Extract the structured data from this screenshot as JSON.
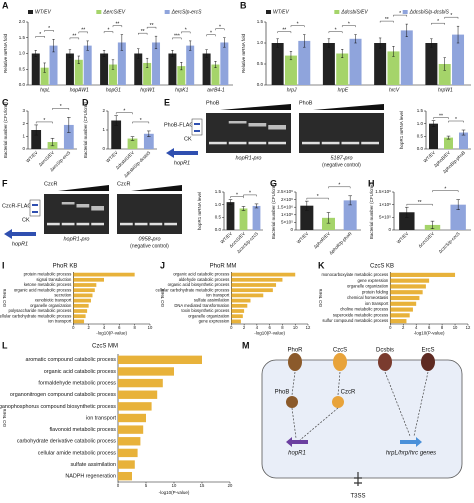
{
  "chart_data": [
    {
      "type": "bar",
      "panel": "A",
      "ylabel": "Relative mRNA fold",
      "categories": [
        "hrpL",
        "hopAW1",
        "hopG1",
        "hrpW1",
        "hrpK1",
        "avrB4-1"
      ],
      "series": [
        {
          "name": "WT/EV",
          "color": "#222222",
          "values": [
            1,
            1,
            1,
            1,
            1,
            1
          ],
          "errors": [
            0.1,
            0.12,
            0.1,
            0.15,
            0.1,
            0.12
          ]
        },
        {
          "name": "ΔercS/EV",
          "color": "#a5d46a",
          "values": [
            0.55,
            0.8,
            0.65,
            0.7,
            0.6,
            0.65
          ],
          "errors": [
            0.15,
            0.12,
            0.15,
            0.15,
            0.12,
            0.1
          ]
        },
        {
          "name": "ΔercS/p-ercS",
          "color": "#8fa4dc",
          "values": [
            1.25,
            1.25,
            1.35,
            1.35,
            1.25,
            1.35
          ],
          "errors": [
            0.2,
            0.15,
            0.25,
            0.2,
            0.15,
            0.15
          ]
        }
      ],
      "ylim": [
        0,
        2
      ],
      "yticks": [
        {
          "value": 0,
          "label": "0.0"
        },
        {
          "value": 0.5,
          "label": "0.5"
        },
        {
          "value": 1,
          "label": "1.0"
        },
        {
          "value": 1.5,
          "label": "1.5"
        },
        {
          "value": 2,
          "label": "2.0"
        }
      ],
      "significance": [
        {
          "label": "*",
          "category": 0,
          "pair": [
            0,
            1
          ]
        },
        {
          "label": "*",
          "category": 0,
          "pair": [
            1,
            2
          ]
        },
        {
          "label": "**",
          "category": 1,
          "pair": [
            0,
            1
          ]
        },
        {
          "label": "**",
          "category": 1,
          "pair": [
            1,
            2
          ]
        },
        {
          "label": "*",
          "category": 2,
          "pair": [
            0,
            1
          ]
        },
        {
          "label": "**",
          "category": 2,
          "pair": [
            1,
            2
          ]
        },
        {
          "label": "**",
          "category": 3,
          "pair": [
            0,
            1
          ]
        },
        {
          "label": "**",
          "category": 3,
          "pair": [
            1,
            2
          ]
        },
        {
          "label": "***",
          "category": 4,
          "pair": [
            0,
            1
          ]
        },
        {
          "label": "*",
          "category": 4,
          "pair": [
            1,
            2
          ]
        },
        {
          "label": "*",
          "category": 5,
          "pair": [
            0,
            1
          ]
        },
        {
          "label": "*",
          "category": 5,
          "pair": [
            1,
            2
          ]
        }
      ]
    },
    {
      "type": "bar",
      "panel": "B",
      "ylabel": "Relative mRNA fold",
      "categories": [
        "hrpJ",
        "hrpE",
        "hrcV",
        "hrpW1"
      ],
      "series": [
        {
          "name": "WT/EV",
          "color": "#222222",
          "values": [
            1,
            1,
            1,
            1
          ],
          "errors": [
            0.1,
            0.1,
            0.12,
            0.1
          ]
        },
        {
          "name": "ΔdcsbiS/EV",
          "color": "#a5d46a",
          "values": [
            0.7,
            0.75,
            0.8,
            0.5
          ],
          "errors": [
            0.1,
            0.1,
            0.12,
            0.15
          ]
        },
        {
          "name": "ΔdcsbiS/p-dcsbiS",
          "color": "#8fa4dc",
          "values": [
            1.05,
            1.1,
            1.3,
            1.2
          ],
          "errors": [
            0.15,
            0.1,
            0.15,
            0.2
          ]
        }
      ],
      "ylim": [
        0,
        1.5
      ],
      "yticks": [
        {
          "value": 0,
          "label": "0.0"
        },
        {
          "value": 0.5,
          "label": "0.5"
        },
        {
          "value": 1,
          "label": "1.0"
        },
        {
          "value": 1.5,
          "label": "1.5"
        }
      ],
      "significance": [
        {
          "label": "**",
          "category": 0,
          "pair": [
            0,
            1
          ]
        },
        {
          "label": "*",
          "category": 0,
          "pair": [
            1,
            2
          ]
        },
        {
          "label": "*",
          "category": 1,
          "pair": [
            0,
            1
          ]
        },
        {
          "label": "*",
          "category": 1,
          "pair": [
            1,
            2
          ]
        },
        {
          "label": "**",
          "category": 2,
          "pair": [
            0,
            1
          ]
        },
        {
          "label": "*",
          "category": 2,
          "pair": [
            1,
            2
          ]
        },
        {
          "label": "*",
          "category": 3,
          "pair": [
            0,
            1
          ]
        },
        {
          "label": "*",
          "category": 3,
          "pair": [
            1,
            2
          ]
        }
      ]
    },
    {
      "type": "bar",
      "panel": "C",
      "ylabel": "Bacterial number (CFU/cm²)",
      "categories": [
        "WT/EV",
        "ΔercS/EV",
        "ΔercS/p-ercS"
      ],
      "values": [
        1.5,
        0.55,
        1.9
      ],
      "errors": [
        0.4,
        0.3,
        0.6
      ],
      "colors": [
        "#222222",
        "#a5d46a",
        "#8fa4dc"
      ],
      "ylim": [
        0,
        3
      ],
      "yticks": [
        0,
        1,
        2,
        3
      ],
      "significance": [
        {
          "label": "*",
          "pair": [
            0,
            1
          ]
        },
        {
          "label": "*",
          "pair": [
            1,
            2
          ]
        }
      ]
    },
    {
      "type": "bar",
      "panel": "D",
      "ylabel": "Bacterial number (CFU/cm²)",
      "categories": [
        "WT/EV",
        "ΔdcsbiS/EV",
        "ΔdcsbiS/p-dcsbiS"
      ],
      "values": [
        1.5,
        0.55,
        0.8
      ],
      "errors": [
        0.25,
        0.1,
        0.15
      ],
      "colors": [
        "#222222",
        "#a5d46a",
        "#8fa4dc"
      ],
      "ylim": [
        0,
        2
      ],
      "yticks": [
        0,
        1,
        2
      ],
      "significance": [
        {
          "label": "*",
          "pair": [
            0,
            1
          ]
        },
        {
          "label": "*",
          "pair": [
            1,
            2
          ]
        }
      ]
    },
    {
      "type": "bar",
      "ylabel": "hopR1 mRNA level",
      "categories": [
        "WT/EV",
        "ΔphoB/EV",
        "ΔphoB/p-phoB"
      ],
      "values": [
        1,
        0.45,
        0.65
      ],
      "errors": [
        0.12,
        0.06,
        0.1
      ],
      "colors": [
        "#222222",
        "#a5d46a",
        "#8fa4dc"
      ],
      "ylim": [
        0,
        1.5
      ],
      "yticks": [
        {
          "value": 0,
          "label": "0.0"
        },
        {
          "value": 0.5,
          "label": "0.5"
        },
        {
          "value": 1,
          "label": "1.0"
        },
        {
          "value": 1.5,
          "label": "1.5"
        }
      ],
      "significance": [
        {
          "label": "**",
          "pair": [
            0,
            1
          ]
        },
        {
          "label": "*",
          "pair": [
            1,
            2
          ]
        }
      ]
    },
    {
      "type": "bar",
      "ylabel": "hopR1 mRNA level",
      "categories": [
        "WT/EV",
        "ΔczcS/EV",
        "ΔczcS/p-czcS"
      ],
      "values": [
        1.1,
        0.85,
        0.95
      ],
      "errors": [
        0.1,
        0.08,
        0.08
      ],
      "colors": [
        "#222222",
        "#a5d46a",
        "#8fa4dc"
      ],
      "ylim": [
        0,
        1.5
      ],
      "yticks": [
        {
          "value": 0,
          "label": "0.0"
        },
        {
          "value": 0.5,
          "label": "0.5"
        },
        {
          "value": 1,
          "label": "1.0"
        },
        {
          "value": 1.5,
          "label": "1.5"
        }
      ],
      "significance": [
        {
          "label": "*",
          "pair": [
            0,
            1
          ]
        },
        {
          "label": "*",
          "pair": [
            1,
            2
          ]
        }
      ]
    },
    {
      "type": "bar",
      "panel": "G",
      "ylabel": "Bacterial number (CFU/cm²)",
      "categories": [
        "WT/EV",
        "ΔphoR/EV",
        "ΔphoR/p-phoR"
      ],
      "values": [
        1600000,
        800000,
        1950000
      ],
      "errors": [
        300000,
        350000,
        300000
      ],
      "colors": [
        "#222222",
        "#a5d46a",
        "#8fa4dc"
      ],
      "ylim": [
        0,
        2500000
      ],
      "yticks": [
        0,
        {
          "value": 500000,
          "label": "5×10⁵"
        },
        {
          "value": 1000000,
          "label": "1×10⁶"
        },
        {
          "value": 1500000,
          "label": "1.5×10⁶"
        },
        {
          "value": 2000000,
          "label": "2×10⁶"
        },
        {
          "value": 2500000,
          "label": "2.5×10⁶"
        }
      ],
      "significance": [
        {
          "label": "*",
          "pair": [
            0,
            1
          ]
        },
        {
          "label": "*",
          "pair": [
            1,
            2
          ]
        }
      ]
    },
    {
      "type": "bar",
      "panel": "H",
      "ylabel": "Bacterial number (CFU/cm²)",
      "categories": [
        "WT/EV",
        "ΔczcS/EV",
        "ΔczcS/p-czcS"
      ],
      "values": [
        700000,
        200000,
        1000000
      ],
      "errors": [
        200000,
        150000,
        200000
      ],
      "colors": [
        "#222222",
        "#a5d46a",
        "#8fa4dc"
      ],
      "ylim": [
        0,
        1500000
      ],
      "yticks": [
        0,
        {
          "value": 500000,
          "label": "5×10⁵"
        },
        {
          "value": 1000000,
          "label": "1×10⁶"
        },
        {
          "value": 1500000,
          "label": "1.5×10⁶"
        }
      ],
      "significance": [
        {
          "label": "**",
          "pair": [
            0,
            1
          ]
        },
        {
          "label": "*",
          "pair": [
            1,
            2
          ]
        }
      ]
    },
    {
      "type": "hbar",
      "panel": "I",
      "title": "PhoR KB",
      "xlabel": "-log10(P-value)",
      "ylabel": "GO Term",
      "color": "#e8b23a",
      "categories": [
        "protein metabolic process",
        "signal transduction",
        "ketone metabolic process",
        "organic acid metabolic process",
        "secretion",
        "xenobiotic transport",
        "organelle organization",
        "polysaccharide metabolic process",
        "cellular carbohydrate metabolic process",
        "ion transport"
      ],
      "values": [
        8,
        4,
        3,
        2.8,
        2.5,
        2.3,
        2,
        1.8,
        1.6,
        1.4
      ],
      "xlim": [
        0,
        10
      ],
      "xticks": [
        0,
        2,
        4,
        6,
        8,
        10
      ]
    },
    {
      "type": "hbar",
      "panel": "J",
      "title": "PhoR MM",
      "xlabel": "-log10(P-value)",
      "ylabel": "GO Term",
      "color": "#e8b23a",
      "categories": [
        "organic acid catabolic process",
        "aldehyde catabolic process",
        "organic acid biosynthetic process",
        "cellular carbohydrate metabolic process",
        "ion transport",
        "sulfate assimilation",
        "DNA mediated transformation",
        "toxin biosynthetic process",
        "organelle organization",
        "gene expression"
      ],
      "values": [
        10,
        8,
        7,
        6.5,
        5,
        3,
        2.5,
        2,
        1.8,
        1.5
      ],
      "xlim": [
        0,
        12
      ],
      "xticks": [
        0,
        2,
        4,
        6,
        8,
        10,
        12
      ]
    },
    {
      "type": "hbar",
      "panel": "K",
      "title": "CzcS KB",
      "xlabel": "-log10(P-value)",
      "ylabel": "GO Term",
      "color": "#e8b23a",
      "categories": [
        "monocarboxylate metabolic process",
        "gene expression",
        "organelle organization",
        "protein folding",
        "chemical homeostasis",
        "ion transport",
        "choline metabolic process",
        "superoxide metabolic process",
        "sulfur compound metabolic process"
      ],
      "values": [
        10,
        6,
        5.5,
        5,
        4.5,
        4,
        3.5,
        3,
        2.5
      ],
      "xlim": [
        0,
        12
      ],
      "xticks": [
        0,
        2,
        4,
        6,
        8,
        10,
        12
      ]
    },
    {
      "type": "hbar",
      "panel": "L",
      "title": "CzcS MM",
      "xlabel": "-log10(P-value)",
      "ylabel": "GO Term",
      "color": "#e8b23a",
      "categories": [
        "aromatic compound catabolic process",
        "organic acid catabolic process",
        "formaldehyde metabolic process",
        "organonitrogen compound catabolic process",
        "organophosphorus compound biosynthetic process",
        "ion transport",
        "flavonoid metabolic process",
        "carbohydrate derivative catabolic process",
        "cellular amide metabolic process",
        "sulfate assimilation",
        "NADPH regeneration"
      ],
      "values": [
        15,
        10,
        8,
        7,
        6,
        5,
        4.5,
        4,
        3.5,
        3,
        2.5
      ],
      "xlim": [
        0,
        20
      ],
      "xticks": [
        0,
        5,
        10,
        15,
        20
      ]
    }
  ],
  "gels": [
    {
      "panel": "E",
      "tag": "PhoB-FLAG",
      "ck": "CK",
      "gene": "hopR1",
      "blots": [
        {
          "protein": "PhoB",
          "probe": "hopR1-pro"
        },
        {
          "protein": "PhoB",
          "probe": "5187-pro",
          "note": "(negative control)"
        }
      ]
    },
    {
      "panel": "F",
      "tag": "CzcR-FLAG",
      "ck": "CK",
      "gene": "hopR1",
      "blots": [
        {
          "protein": "CzcR",
          "probe": "hopR1-pro"
        },
        {
          "protein": "CzcR",
          "probe": "0958-pro",
          "note": "(negative control)"
        }
      ]
    }
  ],
  "diagram": {
    "panel": "M",
    "kinases": [
      "PhoR",
      "CzcS",
      "Dcsbis",
      "ErcS"
    ],
    "regulators": [
      "PhoB",
      "CzcR"
    ],
    "genes": [
      "hopR1",
      "hrpL/hrp/hrc genes"
    ],
    "secretion": "T3SS"
  }
}
